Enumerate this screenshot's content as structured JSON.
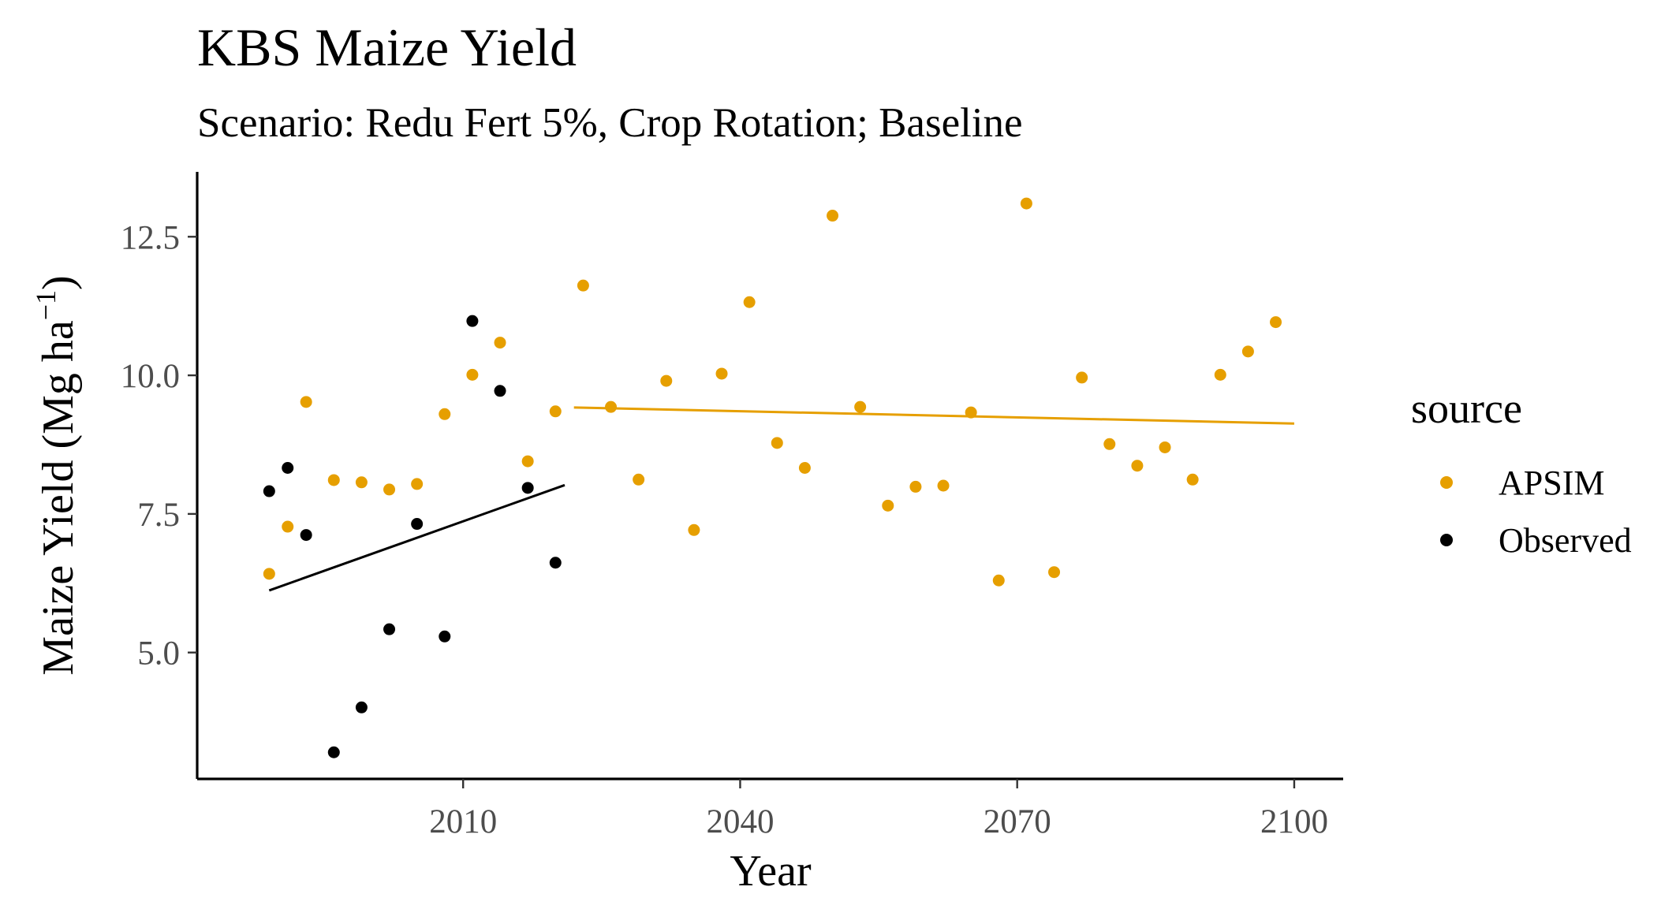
{
  "chart_data": {
    "type": "scatter",
    "title": "KBS Maize Yield",
    "subtitle": "Scenario: Redu Fert 5%, Crop Rotation; Baseline",
    "xlabel": "Year",
    "ylabel_main": "Maize Yield (Mg ha",
    "ylabel_sup": "−1",
    "ylabel_close": ")",
    "xlim": [
      1981.2,
      2105.3
    ],
    "ylim": [
      2.72,
      13.67
    ],
    "x_ticks": [
      2010,
      2040,
      2070,
      2100
    ],
    "x_tick_labels": [
      "2010",
      "2040",
      "2070",
      "2100"
    ],
    "y_ticks": [
      5.0,
      7.5,
      10.0,
      12.5
    ],
    "y_tick_labels": [
      "5.0",
      "7.5",
      "10.0",
      "12.5"
    ],
    "grid": false,
    "legend": {
      "title": "source",
      "position": "right",
      "entries": [
        {
          "label": "APSIM",
          "color": "#E69F00"
        },
        {
          "label": "Observed",
          "color": "#000000"
        }
      ]
    },
    "series": [
      {
        "name": "APSIM",
        "color": "#E69F00",
        "x": [
          1989,
          1991,
          1993,
          1996,
          1999,
          2002,
          2005,
          2008,
          2011,
          2014,
          2017,
          2020,
          2023,
          2026,
          2029,
          2032,
          2035,
          2038,
          2041,
          2044,
          2047,
          2050,
          2053,
          2056,
          2059,
          2062,
          2065,
          2068,
          2071,
          2074,
          2077,
          2080,
          2083,
          2086,
          2089,
          2092,
          2095,
          2098
        ],
        "y": [
          6.42,
          7.27,
          9.52,
          8.11,
          8.07,
          7.94,
          8.04,
          9.3,
          10.01,
          10.59,
          8.45,
          9.35,
          11.62,
          9.43,
          8.12,
          9.9,
          7.21,
          10.03,
          11.32,
          8.78,
          8.33,
          12.88,
          9.43,
          7.65,
          7.99,
          8.01,
          9.33,
          6.3,
          13.1,
          6.45,
          9.96,
          8.76,
          8.37,
          8.7,
          8.12,
          10.01,
          10.43,
          10.96
        ]
      },
      {
        "name": "Observed",
        "color": "#000000",
        "x": [
          1989,
          1991,
          1993,
          1996,
          1999,
          2002,
          2005,
          2008,
          2011,
          2014,
          2017,
          2020
        ],
        "y": [
          7.91,
          8.33,
          7.12,
          3.2,
          4.01,
          5.42,
          7.32,
          5.29,
          10.98,
          9.72,
          7.97,
          6.62
        ]
      }
    ],
    "trend_lines": [
      {
        "series": "Observed",
        "color": "#000000",
        "x": [
          1989,
          2021
        ],
        "y": [
          6.12,
          8.02
        ]
      },
      {
        "series": "APSIM",
        "color": "#E69F00",
        "x": [
          2022,
          2100
        ],
        "y": [
          9.42,
          9.13
        ]
      }
    ]
  }
}
